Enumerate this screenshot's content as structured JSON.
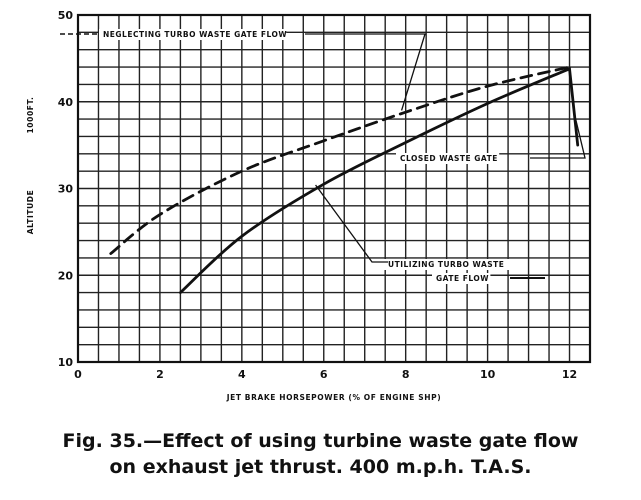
{
  "caption": {
    "line1": "Fig. 35.—Effect of using turbine waste gate flow",
    "line2": "on exhaust jet thrust. 400 m.p.h. T.A.S."
  },
  "chart_data": {
    "type": "line",
    "title": "",
    "xlabel": "JET BRAKE HORSEPOWER (% OF ENGINE SHP)",
    "ylabel": "ALTITUDE",
    "ylabel_unit": "1000FT.",
    "xlim": [
      0,
      12.5
    ],
    "ylim": [
      10,
      50
    ],
    "x_ticks": [
      "0",
      "2",
      "4",
      "6",
      "8",
      "10",
      "12"
    ],
    "y_ticks": [
      "10",
      "20",
      "30",
      "40",
      "50"
    ],
    "grid": true,
    "series": [
      {
        "name": "NEGLECTING TURBO WASTE GATE FLOW",
        "style": "dashed",
        "x": [
          0.8,
          2,
          4,
          6,
          8,
          10,
          12
        ],
        "y": [
          22.5,
          27,
          32,
          35.5,
          38.8,
          41.8,
          44
        ]
      },
      {
        "name": "UTILIZING TURBO WASTE GATE FLOW",
        "style": "solid",
        "x": [
          2.5,
          4,
          6,
          8,
          10,
          12,
          12.2
        ],
        "y": [
          18,
          24.5,
          30.5,
          35.3,
          39.8,
          43.8,
          35
        ]
      }
    ],
    "annotations": [
      {
        "text": "NEGLECTING TURBO WASTE GATE FLOW"
      },
      {
        "text": "CLOSED WASTE GATE"
      },
      {
        "text": "UTILIZING TURBO WASTE",
        "text2": "GATE FLOW"
      }
    ]
  }
}
